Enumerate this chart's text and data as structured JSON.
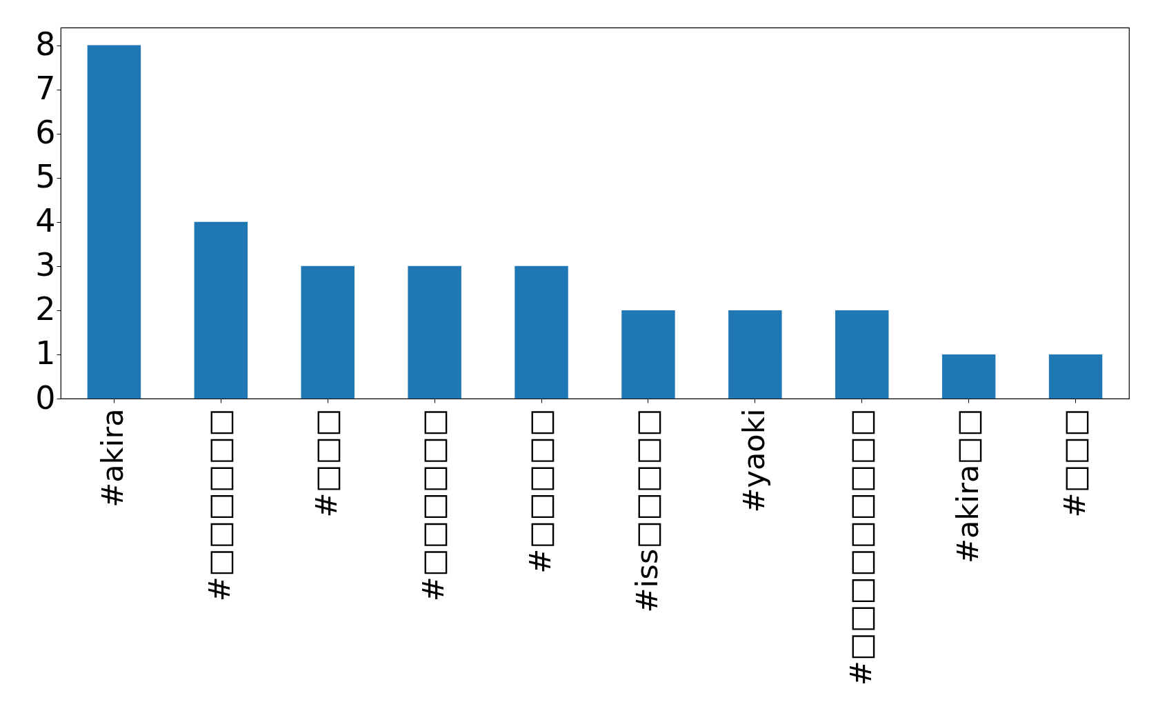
{
  "chart_data": {
    "type": "bar",
    "categories": [
      "#akira",
      "#□□□□□□",
      "#□□□",
      "#□□□□□□",
      "#□□□□□",
      "#iss□□□□□",
      "#yaoki",
      "#□□□□□□□□□",
      "#akira□□",
      "#□□□"
    ],
    "values": [
      8,
      4,
      3,
      3,
      3,
      2,
      2,
      2,
      1,
      1
    ],
    "color": "#1f77b4",
    "ylim": [
      0,
      8.4
    ],
    "yticks": [
      0,
      1,
      2,
      3,
      4,
      5,
      6,
      7,
      8
    ],
    "grid": false
  }
}
